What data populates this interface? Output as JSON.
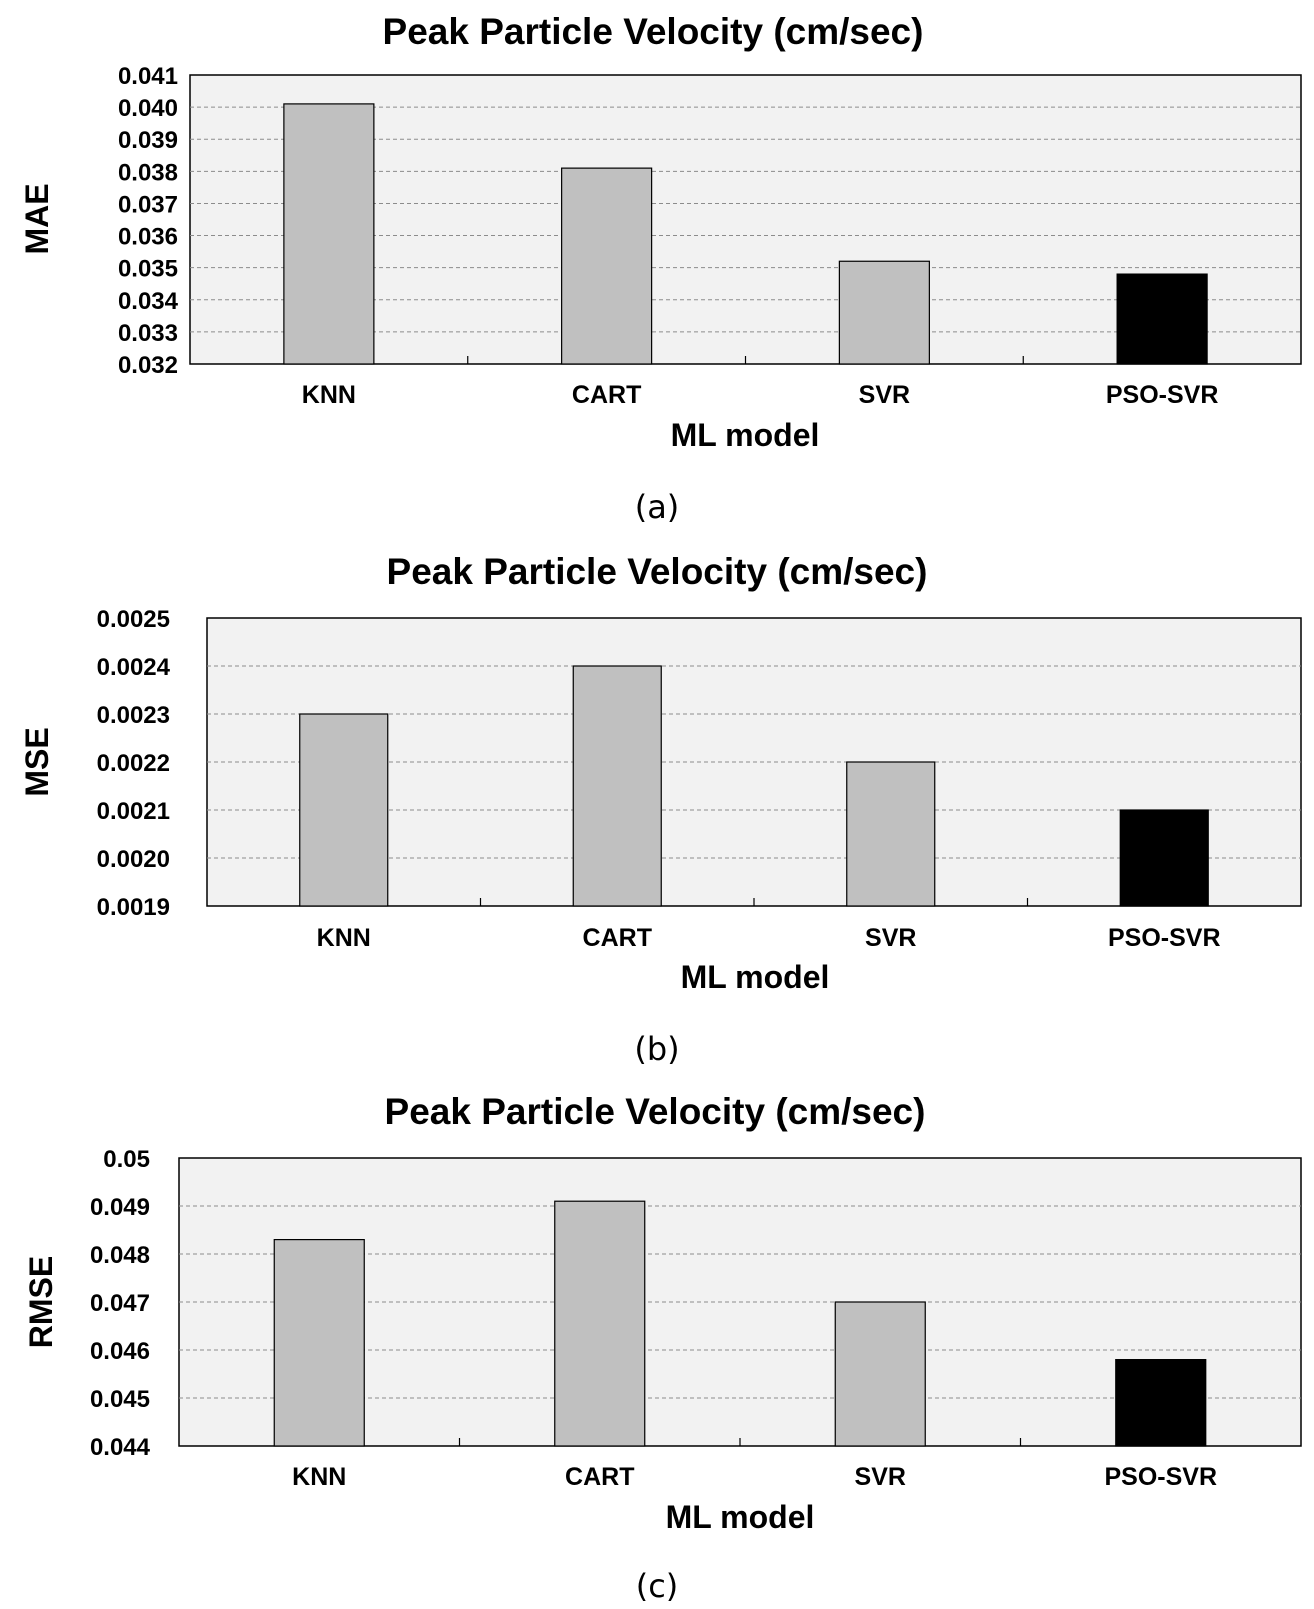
{
  "chart_data": [
    {
      "id": "a",
      "type": "bar",
      "title": "Peak Particle Velocity (cm/sec)",
      "xlabel": "ML model",
      "ylabel": "MAE",
      "caption": "(a)",
      "categories": [
        "KNN",
        "CART",
        "SVR",
        "PSO-SVR"
      ],
      "values": [
        0.0401,
        0.0381,
        0.0352,
        0.0348
      ],
      "ylim": [
        0.032,
        0.041
      ],
      "yticks": [
        "0.032",
        "0.033",
        "0.034",
        "0.035",
        "0.036",
        "0.037",
        "0.038",
        "0.039",
        "0.040",
        "0.041"
      ],
      "bar_colors": [
        "#c0c0c0",
        "#c0c0c0",
        "#c0c0c0",
        "#000000"
      ],
      "plot_background": "#f2f2f2",
      "grid": true
    },
    {
      "id": "b",
      "type": "bar",
      "title": "Peak Particle Velocity (cm/sec)",
      "xlabel": "ML model",
      "ylabel": "MSE",
      "caption": "(b)",
      "categories": [
        "KNN",
        "CART",
        "SVR",
        "PSO-SVR"
      ],
      "values": [
        0.0023,
        0.0024,
        0.0022,
        0.0021
      ],
      "ylim": [
        0.0019,
        0.0025
      ],
      "yticks": [
        "0.0019",
        "0.0020",
        "0.0021",
        "0.0022",
        "0.0023",
        "0.0024",
        "0.0025"
      ],
      "bar_colors": [
        "#c0c0c0",
        "#c0c0c0",
        "#c0c0c0",
        "#000000"
      ],
      "plot_background": "#f2f2f2",
      "grid": true
    },
    {
      "id": "c",
      "type": "bar",
      "title": "Peak Particle Velocity (cm/sec)",
      "xlabel": "ML model",
      "ylabel": "RMSE",
      "caption": "(c)",
      "categories": [
        "KNN",
        "CART",
        "SVR",
        "PSO-SVR"
      ],
      "values": [
        0.0483,
        0.0491,
        0.047,
        0.0458
      ],
      "ylim": [
        0.044,
        0.05
      ],
      "yticks": [
        "0.044",
        "0.045",
        "0.046",
        "0.047",
        "0.048",
        "0.049",
        "0.05"
      ],
      "bar_colors": [
        "#c0c0c0",
        "#c0c0c0",
        "#c0c0c0",
        "#000000"
      ],
      "plot_background": "#f2f2f2",
      "grid": true
    }
  ]
}
